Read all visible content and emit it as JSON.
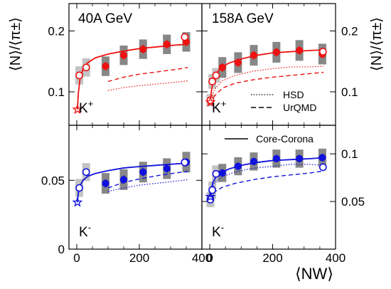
{
  "figure": {
    "ylabel_left": "⟨N⟩/⟨π±⟩",
    "ylabel_right": "⟨N⟩/⟨π±⟩",
    "xlabel": "⟨NW⟩",
    "legend": {
      "hsd": "HSD",
      "urqmd": "UrQMD",
      "core_corona": "Core-Corona"
    },
    "colors": {
      "kplus": "#ee1111",
      "kminus": "#1111dd",
      "syst": "#7a7a7a"
    }
  },
  "chart_data": [
    {
      "type": "scatter",
      "id": "kplus-40",
      "title": "40A GeV",
      "particle": "K+",
      "color": "#ee1111",
      "xlim": [
        -25,
        400
      ],
      "ylim": [
        0.045,
        0.245
      ],
      "yticks": [
        0.1,
        0.2
      ],
      "xticks": [
        0,
        200,
        400
      ],
      "series": [
        {
          "name": "filled",
          "x": [
            92,
            150,
            212,
            288,
            350
          ],
          "y": [
            0.142,
            0.16,
            0.17,
            0.178,
            0.182
          ],
          "err": [
            0.007,
            0.007,
            0.007,
            0.007,
            0.007
          ],
          "syst": [
            0.016,
            0.016,
            0.016,
            0.016,
            0.016
          ]
        },
        {
          "name": "open",
          "x": [
            8,
            30,
            345
          ],
          "y": [
            0.127,
            0.14,
            0.19
          ],
          "err": [
            0.006,
            0.006,
            0.006
          ],
          "syst": [
            0.015,
            0.015,
            0.0
          ]
        },
        {
          "name": "star",
          "x": [
            2
          ],
          "y": [
            0.071
          ]
        }
      ],
      "core_corona": {
        "x": [
          2,
          5,
          10,
          20,
          35,
          60,
          100,
          150,
          200,
          260,
          320,
          355
        ],
        "y": [
          0.071,
          0.098,
          0.12,
          0.138,
          0.148,
          0.156,
          0.162,
          0.167,
          0.171,
          0.174,
          0.177,
          0.178
        ]
      },
      "urqmd": {
        "x": [
          100,
          150,
          200,
          260,
          320,
          355
        ],
        "y": [
          0.117,
          0.124,
          0.129,
          0.133,
          0.137,
          0.14
        ]
      },
      "hsd": {
        "x": [
          100,
          150,
          200,
          260,
          320,
          355
        ],
        "y": [
          0.102,
          0.107,
          0.11,
          0.113,
          0.116,
          0.118
        ]
      }
    },
    {
      "type": "scatter",
      "id": "kplus-158",
      "title": "158A GeV",
      "particle": "K+",
      "color": "#ee1111",
      "xlim": [
        -25,
        400
      ],
      "ylim": [
        0.045,
        0.245
      ],
      "yticks": [
        0.1,
        0.2
      ],
      "xticks": [
        0,
        200,
        400
      ],
      "series": [
        {
          "name": "filled",
          "x": [
            40,
            90,
            140,
            212,
            285,
            358
          ],
          "y": [
            0.14,
            0.148,
            0.16,
            0.165,
            0.168,
            0.162
          ],
          "err": [
            0.007,
            0.007,
            0.007,
            0.007,
            0.007,
            0.007
          ],
          "syst": [
            0.017,
            0.017,
            0.017,
            0.017,
            0.017,
            0.017
          ]
        },
        {
          "name": "open",
          "x": [
            2,
            8,
            20,
            360
          ],
          "y": [
            0.086,
            0.117,
            0.127,
            0.166
          ],
          "err": [
            0.005,
            0.005,
            0.005,
            0.006
          ],
          "syst": [
            0.01,
            0.012,
            0.012,
            0.0
          ]
        },
        {
          "name": "star",
          "x": [
            2
          ],
          "y": [
            0.083
          ]
        }
      ],
      "core_corona": {
        "x": [
          2,
          5,
          10,
          20,
          35,
          60,
          100,
          150,
          200,
          260,
          320,
          362
        ],
        "y": [
          0.083,
          0.1,
          0.116,
          0.13,
          0.139,
          0.147,
          0.154,
          0.16,
          0.164,
          0.166,
          0.168,
          0.169
        ]
      },
      "urqmd": {
        "x": [
          2,
          15,
          40,
          80,
          140,
          200,
          260,
          320,
          362
        ],
        "y": [
          0.08,
          0.093,
          0.106,
          0.114,
          0.12,
          0.124,
          0.127,
          0.13,
          0.132
        ]
      },
      "hsd": {
        "x": [
          2,
          15,
          40,
          80,
          140,
          200,
          260,
          320,
          362
        ],
        "y": [
          0.085,
          0.104,
          0.118,
          0.127,
          0.134,
          0.138,
          0.141,
          0.141,
          0.142
        ]
      }
    },
    {
      "type": "scatter",
      "id": "kminus-40",
      "particle": "K-",
      "color": "#1111dd",
      "xlim": [
        -25,
        400
      ],
      "ylim": [
        0,
        0.09
      ],
      "yticks": [
        0,
        0.05
      ],
      "xticks": [
        0,
        200,
        400
      ],
      "series": [
        {
          "name": "filled",
          "x": [
            92,
            150,
            212,
            288,
            350
          ],
          "y": [
            0.0478,
            0.0505,
            0.056,
            0.0585,
            0.0632
          ],
          "err": [
            0.003,
            0.003,
            0.003,
            0.003,
            0.003
          ],
          "syst": [
            0.0075,
            0.0075,
            0.0075,
            0.0075,
            0.0075
          ]
        },
        {
          "name": "open",
          "x": [
            8,
            30,
            345
          ],
          "y": [
            0.0445,
            0.056,
            0.063
          ],
          "err": [
            0.002,
            0.002,
            0.002
          ],
          "syst": [
            0.0065,
            0.0065,
            0.0
          ]
        },
        {
          "name": "star",
          "x": [
            2
          ],
          "y": [
            0.034
          ]
        }
      ],
      "core_corona": {
        "x": [
          2,
          5,
          10,
          20,
          35,
          60,
          100,
          150,
          200,
          260,
          320,
          355
        ],
        "y": [
          0.034,
          0.041,
          0.046,
          0.05,
          0.053,
          0.055,
          0.057,
          0.059,
          0.06,
          0.061,
          0.062,
          0.0625
        ]
      },
      "urqmd": {
        "x": [
          100,
          150,
          200,
          260,
          320,
          355
        ],
        "y": [
          0.0445,
          0.0485,
          0.051,
          0.0535,
          0.0555,
          0.0565
        ]
      },
      "hsd": {
        "x": [
          100,
          150,
          200,
          260,
          320,
          355
        ],
        "y": [
          0.042,
          0.0445,
          0.0465,
          0.048,
          0.0495,
          0.0505
        ]
      }
    },
    {
      "type": "scatter",
      "id": "kminus-158",
      "particle": "K-",
      "color": "#1111dd",
      "xlim": [
        -25,
        400
      ],
      "ylim": [
        0,
        0.13
      ],
      "yticks": [
        0.05,
        0.1
      ],
      "xticks": [
        0,
        200,
        400
      ],
      "series": [
        {
          "name": "filled",
          "x": [
            40,
            90,
            140,
            212,
            285,
            358
          ],
          "y": [
            0.08,
            0.087,
            0.092,
            0.095,
            0.095,
            0.096
          ],
          "err": [
            0.004,
            0.004,
            0.004,
            0.004,
            0.004,
            0.004
          ],
          "syst": [
            0.0095,
            0.0095,
            0.0095,
            0.0095,
            0.0095,
            0.0095
          ]
        },
        {
          "name": "open",
          "x": [
            2,
            8,
            20,
            360
          ],
          "y": [
            0.052,
            0.062,
            0.079,
            0.086
          ],
          "err": [
            0.003,
            0.003,
            0.003,
            0.003
          ],
          "syst": [
            0.008,
            0.009,
            0.009,
            0.0
          ]
        },
        {
          "name": "star",
          "x": [
            2
          ],
          "y": [
            0.055
          ]
        }
      ],
      "core_corona": {
        "x": [
          2,
          5,
          10,
          20,
          35,
          60,
          100,
          150,
          200,
          260,
          320,
          362
        ],
        "y": [
          0.055,
          0.063,
          0.07,
          0.076,
          0.08,
          0.084,
          0.088,
          0.091,
          0.093,
          0.094,
          0.095,
          0.096
        ]
      },
      "urqmd": {
        "x": [
          2,
          15,
          40,
          80,
          140,
          200,
          260,
          320,
          362
        ],
        "y": [
          0.052,
          0.06,
          0.065,
          0.069,
          0.073,
          0.076,
          0.078,
          0.08,
          0.082
        ]
      },
      "hsd": {
        "x": [
          2,
          15,
          40,
          80,
          140,
          200,
          260,
          320,
          362
        ],
        "y": [
          0.058,
          0.07,
          0.076,
          0.081,
          0.085,
          0.087,
          0.089,
          0.089,
          0.088
        ]
      }
    }
  ]
}
